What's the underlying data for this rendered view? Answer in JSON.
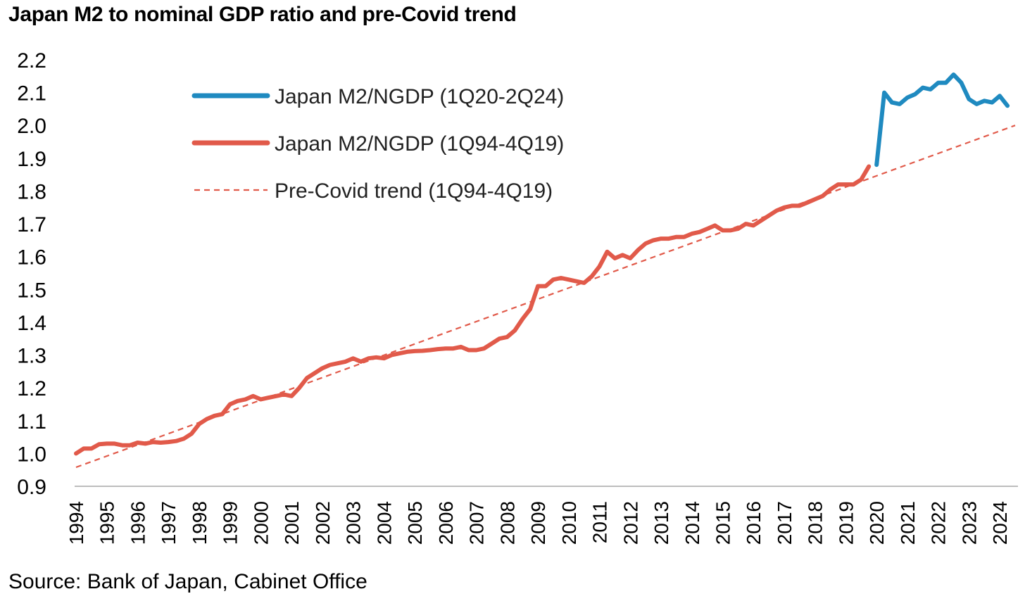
{
  "chart_data": {
    "type": "line",
    "title": "Japan M2 to nominal GDP ratio and pre-Covid trend",
    "source": "Source: Bank of Japan, Cabinet Office",
    "xlabel": "",
    "ylabel": "",
    "ylim": [
      0.9,
      2.2
    ],
    "yticks": [
      "0.9",
      "1.0",
      "1.1",
      "1.2",
      "1.3",
      "1.4",
      "1.5",
      "1.6",
      "1.7",
      "1.8",
      "1.9",
      "2.0",
      "2.1",
      "2.2"
    ],
    "xlim": [
      1994,
      2024.5
    ],
    "xticks": [
      "1994",
      "1995",
      "1996",
      "1997",
      "1998",
      "1999",
      "2000",
      "2001",
      "2002",
      "2003",
      "2004",
      "2005",
      "2006",
      "2007",
      "2008",
      "2009",
      "2010",
      "2011",
      "2012",
      "2013",
      "2014",
      "2015",
      "2016",
      "2017",
      "2018",
      "2019",
      "2020",
      "2021",
      "2022",
      "2023",
      "2024"
    ],
    "grid": false,
    "legend_position": "top-left",
    "series": [
      {
        "name": "Japan M2/NGDP (1Q20-2Q24)",
        "color": "#1f8ac0",
        "style": "solid",
        "points": [
          [
            2020.0,
            1.88
          ],
          [
            2020.25,
            2.1
          ],
          [
            2020.5,
            2.07
          ],
          [
            2020.75,
            2.065
          ],
          [
            2021.0,
            2.085
          ],
          [
            2021.25,
            2.095
          ],
          [
            2021.5,
            2.115
          ],
          [
            2021.75,
            2.11
          ],
          [
            2022.0,
            2.13
          ],
          [
            2022.25,
            2.13
          ],
          [
            2022.5,
            2.155
          ],
          [
            2022.75,
            2.13
          ],
          [
            2023.0,
            2.08
          ],
          [
            2023.25,
            2.065
          ],
          [
            2023.5,
            2.075
          ],
          [
            2023.75,
            2.07
          ],
          [
            2024.0,
            2.09
          ],
          [
            2024.25,
            2.06
          ]
        ]
      },
      {
        "name": "Japan M2/NGDP (1Q94-4Q19)",
        "color": "#e15a4a",
        "style": "solid",
        "points": [
          [
            1994.0,
            1.0
          ],
          [
            1994.25,
            1.015
          ],
          [
            1994.5,
            1.015
          ],
          [
            1994.75,
            1.028
          ],
          [
            1995.0,
            1.03
          ],
          [
            1995.25,
            1.03
          ],
          [
            1995.5,
            1.025
          ],
          [
            1995.75,
            1.025
          ],
          [
            1996.0,
            1.033
          ],
          [
            1996.25,
            1.03
          ],
          [
            1996.5,
            1.035
          ],
          [
            1996.75,
            1.033
          ],
          [
            1997.0,
            1.035
          ],
          [
            1997.25,
            1.038
          ],
          [
            1997.5,
            1.045
          ],
          [
            1997.75,
            1.06
          ],
          [
            1998.0,
            1.09
          ],
          [
            1998.25,
            1.105
          ],
          [
            1998.5,
            1.115
          ],
          [
            1998.75,
            1.12
          ],
          [
            1999.0,
            1.15
          ],
          [
            1999.25,
            1.16
          ],
          [
            1999.5,
            1.165
          ],
          [
            1999.75,
            1.175
          ],
          [
            2000.0,
            1.165
          ],
          [
            2000.25,
            1.17
          ],
          [
            2000.5,
            1.175
          ],
          [
            2000.75,
            1.18
          ],
          [
            2001.0,
            1.175
          ],
          [
            2001.25,
            1.2
          ],
          [
            2001.5,
            1.23
          ],
          [
            2001.75,
            1.245
          ],
          [
            2002.0,
            1.26
          ],
          [
            2002.25,
            1.27
          ],
          [
            2002.5,
            1.275
          ],
          [
            2002.75,
            1.28
          ],
          [
            2003.0,
            1.29
          ],
          [
            2003.25,
            1.28
          ],
          [
            2003.5,
            1.29
          ],
          [
            2003.75,
            1.293
          ],
          [
            2004.0,
            1.29
          ],
          [
            2004.25,
            1.3
          ],
          [
            2004.5,
            1.305
          ],
          [
            2004.75,
            1.31
          ],
          [
            2005.0,
            1.312
          ],
          [
            2005.25,
            1.313
          ],
          [
            2005.5,
            1.315
          ],
          [
            2005.75,
            1.318
          ],
          [
            2006.0,
            1.32
          ],
          [
            2006.25,
            1.32
          ],
          [
            2006.5,
            1.325
          ],
          [
            2006.75,
            1.315
          ],
          [
            2007.0,
            1.315
          ],
          [
            2007.25,
            1.32
          ],
          [
            2007.5,
            1.335
          ],
          [
            2007.75,
            1.35
          ],
          [
            2008.0,
            1.355
          ],
          [
            2008.25,
            1.375
          ],
          [
            2008.5,
            1.41
          ],
          [
            2008.75,
            1.44
          ],
          [
            2009.0,
            1.51
          ],
          [
            2009.25,
            1.51
          ],
          [
            2009.5,
            1.53
          ],
          [
            2009.75,
            1.535
          ],
          [
            2010.0,
            1.53
          ],
          [
            2010.25,
            1.525
          ],
          [
            2010.5,
            1.52
          ],
          [
            2010.75,
            1.54
          ],
          [
            2011.0,
            1.57
          ],
          [
            2011.25,
            1.615
          ],
          [
            2011.5,
            1.595
          ],
          [
            2011.75,
            1.605
          ],
          [
            2012.0,
            1.595
          ],
          [
            2012.25,
            1.62
          ],
          [
            2012.5,
            1.64
          ],
          [
            2012.75,
            1.65
          ],
          [
            2013.0,
            1.655
          ],
          [
            2013.25,
            1.655
          ],
          [
            2013.5,
            1.66
          ],
          [
            2013.75,
            1.66
          ],
          [
            2014.0,
            1.67
          ],
          [
            2014.25,
            1.675
          ],
          [
            2014.5,
            1.685
          ],
          [
            2014.75,
            1.695
          ],
          [
            2015.0,
            1.68
          ],
          [
            2015.25,
            1.68
          ],
          [
            2015.5,
            1.685
          ],
          [
            2015.75,
            1.7
          ],
          [
            2016.0,
            1.695
          ],
          [
            2016.25,
            1.71
          ],
          [
            2016.5,
            1.725
          ],
          [
            2016.75,
            1.74
          ],
          [
            2017.0,
            1.75
          ],
          [
            2017.25,
            1.755
          ],
          [
            2017.5,
            1.755
          ],
          [
            2017.75,
            1.765
          ],
          [
            2018.0,
            1.775
          ],
          [
            2018.25,
            1.785
          ],
          [
            2018.5,
            1.805
          ],
          [
            2018.75,
            1.82
          ],
          [
            2019.0,
            1.82
          ],
          [
            2019.25,
            1.82
          ],
          [
            2019.5,
            1.835
          ],
          [
            2019.75,
            1.875
          ]
        ]
      },
      {
        "name": "Pre-Covid trend (1Q94-4Q19)",
        "color": "#e15a4a",
        "style": "dashed",
        "points": [
          [
            1994.0,
            0.958
          ],
          [
            2024.5,
            2.0
          ]
        ]
      }
    ]
  }
}
